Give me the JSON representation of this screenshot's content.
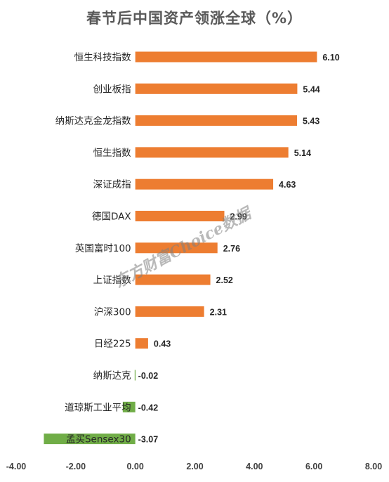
{
  "chart_data": {
    "type": "bar",
    "orientation": "horizontal",
    "title": "春节后中国资产领涨全球（%）",
    "categories": [
      "恒生科技指数",
      "创业板指",
      "纳斯达克金龙指数",
      "恒生指数",
      "深证成指",
      "德国DAX",
      "英国富时100",
      "上证指数",
      "沪深300",
      "日经225",
      "纳斯达克",
      "道琼斯工业平均",
      "孟买Sensex30"
    ],
    "values": [
      6.1,
      5.44,
      5.43,
      5.14,
      4.63,
      2.99,
      2.76,
      2.52,
      2.31,
      0.43,
      -0.02,
      -0.42,
      -3.07
    ],
    "value_labels": [
      "6.10",
      "5.44",
      "5.43",
      "5.14",
      "4.63",
      "2.99",
      "2.76",
      "2.52",
      "2.31",
      "0.43",
      "-0.02",
      "-0.42",
      "-3.07"
    ],
    "xlim": [
      -4.0,
      8.0
    ],
    "x_ticks": [
      "-4.00",
      "-2.00",
      "0.00",
      "2.00",
      "4.00",
      "6.00",
      "8.00"
    ],
    "x_tick_values": [
      -4,
      -2,
      0,
      2,
      4,
      6,
      8
    ],
    "colors": {
      "positive": "#ED7D31",
      "negative": "#70AD47"
    },
    "grid": false,
    "legend": "none"
  },
  "watermark": "东方财富Choice数据"
}
